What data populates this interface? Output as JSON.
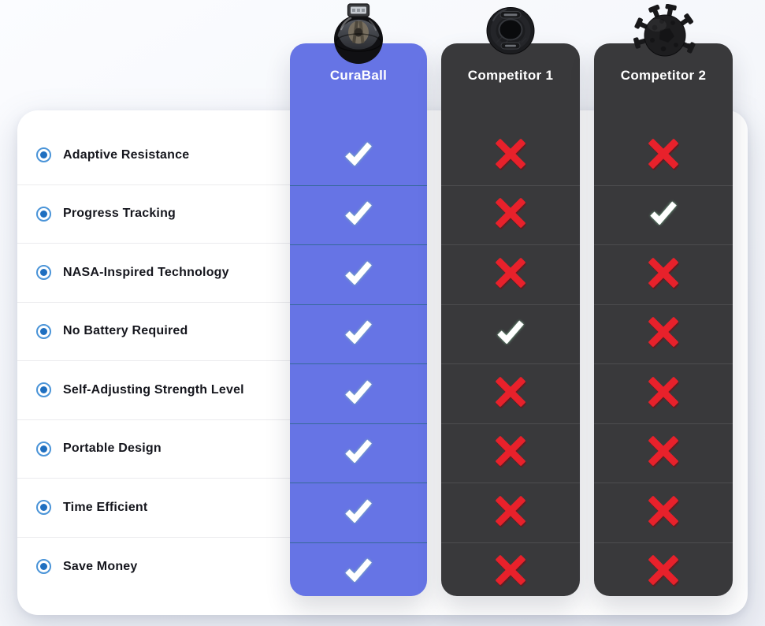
{
  "comparison": {
    "features": [
      "Adaptive Resistance",
      "Progress Tracking",
      "NASA-Inspired Technology",
      "No Battery Required",
      "Self-Adjusting Strength Level",
      "Portable Design",
      "Time Efficient",
      "Save Money"
    ],
    "columns": [
      {
        "name": "CuraBall",
        "theme": "primary",
        "accent_color": "#6674e5",
        "product_image": "gyro-ball",
        "values": [
          "check",
          "check",
          "check",
          "check",
          "check",
          "check",
          "check",
          "check"
        ]
      },
      {
        "name": "Competitor 1",
        "theme": "dark",
        "accent_color": "#39393b",
        "product_image": "grip-ring",
        "values": [
          "cross",
          "cross",
          "cross",
          "check",
          "cross",
          "cross",
          "cross",
          "cross"
        ]
      },
      {
        "name": "Competitor 2",
        "theme": "dark",
        "accent_color": "#39393b",
        "product_image": "spiky-ball",
        "values": [
          "cross",
          "check",
          "cross",
          "cross",
          "cross",
          "cross",
          "cross",
          "cross"
        ]
      }
    ],
    "icons": {
      "feature_bullet": "radio-bullet-icon",
      "positive": "check-icon",
      "negative": "cross-icon"
    },
    "colors": {
      "page_bg": "#f3f5f9",
      "card_bg": "#ffffff",
      "primary_column": "#6674e5",
      "dark_column": "#39393b",
      "check": "#ffffff",
      "check_glow": "#8fd6a4",
      "cross": "#e8212b",
      "bullet_ring": "#4a94d8",
      "bullet_dot": "#1f6fc0",
      "feature_text": "#15161d",
      "header_text": "#ffffff"
    }
  }
}
